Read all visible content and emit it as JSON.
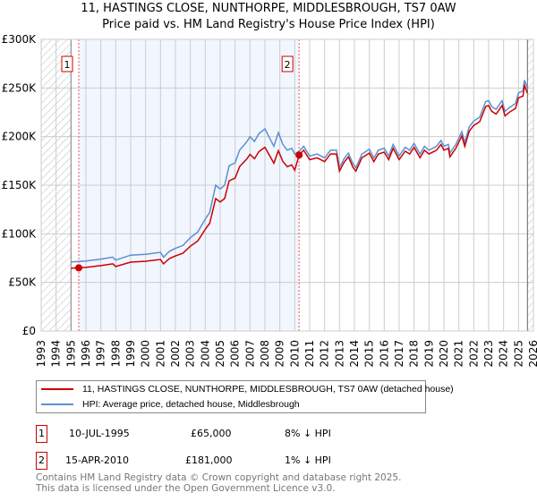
{
  "chart_data": {
    "type": "line",
    "title": "11, HASTINGS CLOSE, NUNTHORPE, MIDDLESBROUGH, TS7 0AW",
    "subtitle": "Price paid vs. HM Land Registry's House Price Index (HPI)",
    "xlim": [
      1993,
      2026
    ],
    "ylim": [
      0,
      300000
    ],
    "y_ticks": [
      {
        "v": 0,
        "label": "£0"
      },
      {
        "v": 50000,
        "label": "£50K"
      },
      {
        "v": 100000,
        "label": "£100K"
      },
      {
        "v": 150000,
        "label": "£150K"
      },
      {
        "v": 200000,
        "label": "£200K"
      },
      {
        "v": 250000,
        "label": "£250K"
      },
      {
        "v": 300000,
        "label": "£300K"
      }
    ],
    "x_ticks": [
      "1993",
      "1994",
      "1995",
      "1996",
      "1997",
      "1998",
      "1999",
      "2000",
      "2001",
      "2002",
      "2003",
      "2004",
      "2005",
      "2006",
      "2007",
      "2008",
      "2009",
      "2010",
      "2011",
      "2012",
      "2013",
      "2014",
      "2015",
      "2016",
      "2017",
      "2018",
      "2019",
      "2020",
      "2021",
      "2022",
      "2023",
      "2024",
      "2025",
      "2026"
    ],
    "data_range": [
      1995.0,
      2025.6
    ],
    "shaded_range": [
      1995.52,
      2010.29
    ],
    "series": [
      {
        "name": "11, HASTINGS CLOSE, NUNTHORPE, MIDDLESBROUGH, TS7 0AW (detached house)",
        "color": "#cc0000",
        "derived_from_hpi": true
      },
      {
        "name": "HPI: Average price, detached house, Middlesbrough",
        "color": "#5b8fd4",
        "x": [
          1995.0,
          1996,
          1997,
          1997.8,
          1998.0,
          1999,
          2000,
          2001,
          2001.2,
          2001.6,
          2002,
          2002.5,
          2003,
          2003.5,
          2004,
          2004.3,
          2004.7,
          2005,
          2005.3,
          2005.6,
          2006,
          2006.3,
          2006.8,
          2007,
          2007.3,
          2007.6,
          2008,
          2008.3,
          2008.6,
          2008.9,
          2009.2,
          2009.5,
          2009.8,
          2010,
          2010.3,
          2010.6,
          2011,
          2011.5,
          2012,
          2012.4,
          2012.8,
          2013,
          2013.3,
          2013.6,
          2013.9,
          2014.1,
          2014.5,
          2015,
          2015.3,
          2015.6,
          2016,
          2016.3,
          2016.6,
          2017,
          2017.4,
          2017.7,
          2018,
          2018.4,
          2018.7,
          2019,
          2019.5,
          2019.8,
          2020,
          2020.3,
          2020.4,
          2020.8,
          2021.2,
          2021.4,
          2021.7,
          2022,
          2022.4,
          2022.8,
          2023,
          2023.2,
          2023.5,
          2023.9,
          2024.1,
          2024.4,
          2024.8,
          2025,
          2025.3,
          2025.4,
          2025.6
        ],
        "y": [
          71000,
          72000,
          74000,
          76000,
          73000,
          78000,
          79000,
          81000,
          76000,
          82000,
          85000,
          88000,
          96000,
          102000,
          115000,
          122000,
          150000,
          146000,
          150000,
          170000,
          173000,
          186000,
          195000,
          200000,
          195000,
          203000,
          208000,
          199000,
          190000,
          204000,
          192000,
          186000,
          188000,
          182000,
          185000,
          190000,
          180000,
          182000,
          178000,
          186000,
          186000,
          168000,
          177000,
          183000,
          172000,
          168000,
          182000,
          187000,
          178000,
          186000,
          188000,
          180000,
          192000,
          180000,
          189000,
          186000,
          193000,
          182000,
          190000,
          186000,
          190000,
          196000,
          190000,
          192000,
          183000,
          192000,
          205000,
          194000,
          210000,
          216000,
          220000,
          236000,
          237000,
          231000,
          228000,
          237000,
          226000,
          230000,
          234000,
          245000,
          247000,
          258000,
          250000
        ]
      }
    ],
    "sales": [
      {
        "id": "1",
        "date": "10-JUL-1995",
        "x": 1995.52,
        "price": 65000,
        "price_label": "£65,000",
        "hpi_diff": "8% ↓ HPI"
      },
      {
        "id": "2",
        "date": "15-APR-2010",
        "x": 2010.29,
        "price": 181000,
        "price_label": "£181,000",
        "hpi_diff": "1% ↓ HPI"
      }
    ]
  },
  "footer": {
    "line1": "Contains HM Land Registry data © Crown copyright and database right 2025.",
    "line2": "This data is licensed under the Open Government Licence v3.0."
  }
}
